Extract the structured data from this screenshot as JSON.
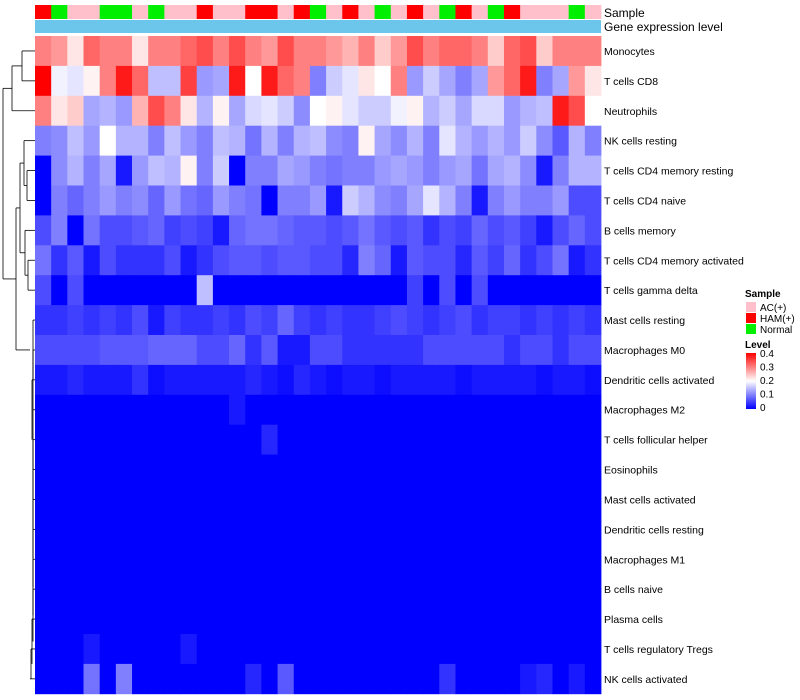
{
  "chart_data": {
    "type": "heatmap",
    "title": "",
    "annotation_rows": [
      {
        "label": "Sample"
      },
      {
        "label": "Gene expression level",
        "color": "#6cc5ea"
      }
    ],
    "sample_types": [
      {
        "name": "AC(+)",
        "color": "#ffc0cb"
      },
      {
        "name": "HAM(+)",
        "color": "#ff0000"
      },
      {
        "name": "Normal",
        "color": "#00ee00"
      }
    ],
    "samples": [
      "H",
      "N",
      "A",
      "A",
      "N",
      "N",
      "A",
      "N",
      "A",
      "A",
      "H",
      "A",
      "A",
      "H",
      "H",
      "A",
      "H",
      "N",
      "A",
      "H",
      "A",
      "N",
      "A",
      "H",
      "A",
      "N",
      "H",
      "A",
      "N",
      "H",
      "A",
      "A",
      "A",
      "N",
      "A"
    ],
    "rows": [
      "Monocytes",
      "T cells CD8",
      "Neutrophils",
      "NK cells resting",
      "T cells CD4 memory resting",
      "T cells CD4 naive",
      "B cells memory",
      "T cells CD4 memory activated",
      "T cells gamma delta",
      "Mast cells resting",
      "Macrophages M0",
      "Dendritic cells activated",
      "Macrophages M2",
      "T cells follicular helper",
      "Eosinophils",
      "Mast cells activated",
      "Dendritic cells resting",
      "Macrophages M1",
      "B cells naive",
      "Plasma cells",
      "T cells regulatory  Tregs",
      "NK cells activated"
    ],
    "values": [
      [
        0.3,
        0.28,
        0.22,
        0.32,
        0.3,
        0.3,
        0.22,
        0.3,
        0.3,
        0.32,
        0.34,
        0.3,
        0.34,
        0.3,
        0.28,
        0.34,
        0.3,
        0.3,
        0.28,
        0.26,
        0.3,
        0.24,
        0.28,
        0.34,
        0.3,
        0.32,
        0.32,
        0.3,
        0.24,
        0.32,
        0.34,
        0.24,
        0.3,
        0.3,
        0.3
      ],
      [
        0.4,
        0.19,
        0.18,
        0.21,
        0.3,
        0.38,
        0.32,
        0.15,
        0.15,
        0.35,
        0.12,
        0.13,
        0.38,
        0.2,
        0.38,
        0.32,
        0.3,
        0.1,
        0.16,
        0.18,
        0.22,
        0.2,
        0.3,
        0.12,
        0.16,
        0.13,
        0.1,
        0.13,
        0.28,
        0.32,
        0.38,
        0.1,
        0.13,
        0.28,
        0.22
      ],
      [
        0.3,
        0.22,
        0.24,
        0.13,
        0.14,
        0.12,
        0.26,
        0.34,
        0.3,
        0.22,
        0.14,
        0.21,
        0.13,
        0.17,
        0.18,
        0.16,
        0.11,
        0.2,
        0.21,
        0.18,
        0.16,
        0.16,
        0.19,
        0.21,
        0.14,
        0.16,
        0.13,
        0.17,
        0.17,
        0.12,
        0.14,
        0.15,
        0.38,
        0.34,
        0.2
      ],
      [
        0.1,
        0.11,
        0.15,
        0.12,
        0.2,
        0.14,
        0.14,
        0.1,
        0.15,
        0.12,
        0.1,
        0.15,
        0.14,
        0.09,
        0.14,
        0.1,
        0.14,
        0.15,
        0.11,
        0.1,
        0.21,
        0.13,
        0.11,
        0.14,
        0.1,
        0.18,
        0.14,
        0.12,
        0.14,
        0.12,
        0.16,
        0.11,
        0.07,
        0.14,
        0.1
      ],
      [
        0.0,
        0.11,
        0.14,
        0.1,
        0.13,
        0.02,
        0.12,
        0.15,
        0.14,
        0.21,
        0.1,
        0.16,
        0.0,
        0.1,
        0.1,
        0.13,
        0.12,
        0.1,
        0.09,
        0.1,
        0.1,
        0.12,
        0.13,
        0.12,
        0.1,
        0.12,
        0.13,
        0.09,
        0.13,
        0.14,
        0.11,
        0.02,
        0.1,
        0.14,
        0.14
      ],
      [
        0.0,
        0.1,
        0.08,
        0.1,
        0.12,
        0.1,
        0.11,
        0.08,
        0.12,
        0.09,
        0.08,
        0.12,
        0.1,
        0.09,
        0.0,
        0.1,
        0.1,
        0.12,
        0.02,
        0.16,
        0.14,
        0.11,
        0.1,
        0.13,
        0.18,
        0.14,
        0.1,
        0.02,
        0.1,
        0.12,
        0.1,
        0.1,
        0.12,
        0.06,
        0.06
      ],
      [
        0.06,
        0.1,
        0.0,
        0.09,
        0.06,
        0.06,
        0.07,
        0.08,
        0.05,
        0.06,
        0.05,
        0.02,
        0.08,
        0.09,
        0.09,
        0.08,
        0.07,
        0.07,
        0.06,
        0.07,
        0.09,
        0.07,
        0.06,
        0.07,
        0.04,
        0.06,
        0.05,
        0.08,
        0.06,
        0.07,
        0.05,
        0.02,
        0.06,
        0.08,
        0.06
      ],
      [
        0.09,
        0.04,
        0.07,
        0.02,
        0.06,
        0.04,
        0.04,
        0.04,
        0.06,
        0.02,
        0.04,
        0.06,
        0.07,
        0.07,
        0.06,
        0.07,
        0.07,
        0.06,
        0.06,
        0.03,
        0.1,
        0.08,
        0.02,
        0.07,
        0.06,
        0.06,
        0.03,
        0.07,
        0.05,
        0.08,
        0.04,
        0.06,
        0.09,
        0.02,
        0.04
      ],
      [
        0.06,
        0.0,
        0.06,
        0.0,
        0.0,
        0.0,
        0.0,
        0.0,
        0.0,
        0.0,
        0.15,
        0.0,
        0.0,
        0.0,
        0.0,
        0.0,
        0.0,
        0.0,
        0.0,
        0.0,
        0.0,
        0.0,
        0.0,
        0.05,
        0.0,
        0.06,
        0.0,
        0.06,
        0.0,
        0.0,
        0.0,
        0.0,
        0.0,
        0.0,
        0.0
      ],
      [
        0.04,
        0.04,
        0.05,
        0.04,
        0.05,
        0.04,
        0.06,
        0.02,
        0.05,
        0.04,
        0.04,
        0.05,
        0.04,
        0.06,
        0.05,
        0.08,
        0.05,
        0.04,
        0.05,
        0.04,
        0.04,
        0.05,
        0.06,
        0.05,
        0.04,
        0.05,
        0.06,
        0.04,
        0.05,
        0.05,
        0.04,
        0.05,
        0.04,
        0.05,
        0.04
      ],
      [
        0.06,
        0.06,
        0.06,
        0.06,
        0.07,
        0.07,
        0.07,
        0.08,
        0.08,
        0.08,
        0.06,
        0.06,
        0.08,
        0.04,
        0.07,
        0.02,
        0.02,
        0.06,
        0.06,
        0.04,
        0.04,
        0.04,
        0.04,
        0.04,
        0.06,
        0.06,
        0.06,
        0.06,
        0.06,
        0.04,
        0.06,
        0.06,
        0.04,
        0.06,
        0.06
      ],
      [
        0.02,
        0.02,
        0.03,
        0.02,
        0.02,
        0.02,
        0.04,
        0.01,
        0.02,
        0.02,
        0.02,
        0.02,
        0.02,
        0.03,
        0.02,
        0.01,
        0.03,
        0.02,
        0.01,
        0.02,
        0.02,
        0.01,
        0.02,
        0.02,
        0.02,
        0.02,
        0.01,
        0.02,
        0.02,
        0.02,
        0.02,
        0.01,
        0.02,
        0.02,
        0.01
      ],
      [
        0.0,
        0.0,
        0.0,
        0.0,
        0.0,
        0.0,
        0.0,
        0.0,
        0.0,
        0.0,
        0.0,
        0.0,
        0.02,
        0.0,
        0.0,
        0.0,
        0.0,
        0.0,
        0.0,
        0.0,
        0.0,
        0.0,
        0.0,
        0.0,
        0.0,
        0.0,
        0.0,
        0.0,
        0.0,
        0.0,
        0.0,
        0.0,
        0.0,
        0.0,
        0.0
      ],
      [
        0.0,
        0.0,
        0.0,
        0.0,
        0.0,
        0.0,
        0.0,
        0.0,
        0.0,
        0.0,
        0.0,
        0.0,
        0.0,
        0.0,
        0.03,
        0.0,
        0.0,
        0.0,
        0.0,
        0.0,
        0.0,
        0.0,
        0.0,
        0.0,
        0.0,
        0.0,
        0.0,
        0.0,
        0.0,
        0.0,
        0.0,
        0.0,
        0.0,
        0.0,
        0.0
      ],
      [
        0.0,
        0.0,
        0.0,
        0.0,
        0.0,
        0.0,
        0.0,
        0.0,
        0.0,
        0.0,
        0.0,
        0.0,
        0.0,
        0.0,
        0.0,
        0.0,
        0.0,
        0.0,
        0.0,
        0.0,
        0.0,
        0.0,
        0.0,
        0.0,
        0.0,
        0.0,
        0.0,
        0.0,
        0.0,
        0.0,
        0.0,
        0.0,
        0.0,
        0.0,
        0.0
      ],
      [
        0.0,
        0.0,
        0.0,
        0.0,
        0.0,
        0.0,
        0.0,
        0.0,
        0.0,
        0.0,
        0.0,
        0.0,
        0.0,
        0.0,
        0.0,
        0.0,
        0.0,
        0.0,
        0.0,
        0.0,
        0.0,
        0.0,
        0.0,
        0.0,
        0.0,
        0.0,
        0.0,
        0.0,
        0.0,
        0.0,
        0.0,
        0.0,
        0.0,
        0.0,
        0.0
      ],
      [
        0.0,
        0.0,
        0.0,
        0.0,
        0.0,
        0.0,
        0.0,
        0.0,
        0.0,
        0.0,
        0.0,
        0.0,
        0.0,
        0.0,
        0.0,
        0.0,
        0.0,
        0.0,
        0.0,
        0.0,
        0.0,
        0.0,
        0.0,
        0.0,
        0.0,
        0.0,
        0.0,
        0.0,
        0.0,
        0.0,
        0.0,
        0.0,
        0.0,
        0.0,
        0.0
      ],
      [
        0.0,
        0.0,
        0.0,
        0.0,
        0.0,
        0.0,
        0.0,
        0.0,
        0.0,
        0.0,
        0.0,
        0.0,
        0.0,
        0.0,
        0.0,
        0.0,
        0.0,
        0.0,
        0.0,
        0.0,
        0.0,
        0.0,
        0.0,
        0.0,
        0.0,
        0.0,
        0.0,
        0.0,
        0.0,
        0.0,
        0.0,
        0.0,
        0.0,
        0.0,
        0.0
      ],
      [
        0.0,
        0.0,
        0.0,
        0.0,
        0.0,
        0.0,
        0.0,
        0.0,
        0.0,
        0.0,
        0.0,
        0.0,
        0.0,
        0.0,
        0.0,
        0.0,
        0.0,
        0.0,
        0.0,
        0.0,
        0.0,
        0.0,
        0.0,
        0.0,
        0.0,
        0.0,
        0.0,
        0.0,
        0.0,
        0.0,
        0.0,
        0.0,
        0.0,
        0.0,
        0.0
      ],
      [
        0.0,
        0.0,
        0.0,
        0.0,
        0.0,
        0.0,
        0.0,
        0.0,
        0.0,
        0.0,
        0.0,
        0.0,
        0.0,
        0.0,
        0.0,
        0.0,
        0.0,
        0.0,
        0.0,
        0.0,
        0.0,
        0.0,
        0.0,
        0.0,
        0.0,
        0.0,
        0.0,
        0.0,
        0.0,
        0.0,
        0.0,
        0.0,
        0.0,
        0.0,
        0.0
      ],
      [
        0.0,
        0.0,
        0.0,
        0.02,
        0.0,
        0.0,
        0.0,
        0.0,
        0.0,
        0.02,
        0.0,
        0.0,
        0.0,
        0.0,
        0.0,
        0.0,
        0.0,
        0.0,
        0.0,
        0.0,
        0.0,
        0.0,
        0.0,
        0.0,
        0.0,
        0.0,
        0.0,
        0.0,
        0.0,
        0.0,
        0.0,
        0.0,
        0.0,
        0.0,
        0.0
      ],
      [
        0.0,
        0.0,
        0.0,
        0.09,
        0.0,
        0.1,
        0.0,
        0.0,
        0.0,
        0.0,
        0.0,
        0.0,
        0.0,
        0.03,
        0.0,
        0.07,
        0.0,
        0.0,
        0.0,
        0.0,
        0.0,
        0.0,
        0.0,
        0.0,
        0.0,
        0.04,
        0.0,
        0.0,
        0.0,
        0.0,
        0.02,
        0.03,
        0.0,
        0.02,
        0.0
      ]
    ],
    "legend": {
      "sample_title": "Sample",
      "level_title": "Level",
      "level_ticks": [
        "0.4",
        "0.3",
        "0.2",
        "0.1",
        "0"
      ],
      "color_scale": {
        "min": 0,
        "mid": 0.2,
        "max": 0.4,
        "low": "#0000ff",
        "midColor": "#ffffff",
        "high": "#ff0000"
      }
    },
    "xlabel": "",
    "ylabel": ""
  }
}
